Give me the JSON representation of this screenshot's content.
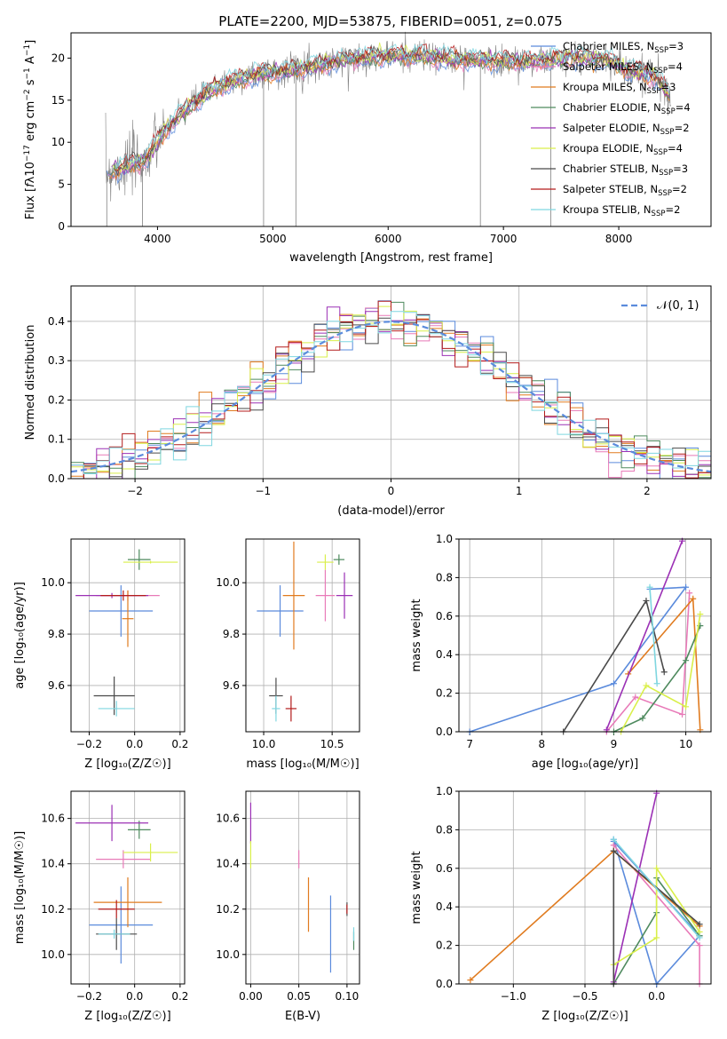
{
  "figure": {
    "title": "PLATE=2200, MJD=53875, FIBERID=0051, z=0.075"
  },
  "models": [
    {
      "name": "Chabrier MILES",
      "nssp": "3",
      "color": "#5b8bdc"
    },
    {
      "name": "Salpeter MILES",
      "nssp": "4",
      "color": "#e87ab8"
    },
    {
      "name": "Kroupa MILES",
      "nssp": "3",
      "color": "#e07b1f"
    },
    {
      "name": "Chabrier ELODIE",
      "nssp": "4",
      "color": "#4e8a5e"
    },
    {
      "name": "Salpeter ELODIE",
      "nssp": "2",
      "color": "#9b30b5"
    },
    {
      "name": "Kroupa ELODIE",
      "nssp": "4",
      "color": "#d9ef4a"
    },
    {
      "name": "Chabrier STELIB",
      "nssp": "3",
      "color": "#4a4a4a"
    },
    {
      "name": "Salpeter STELIB",
      "nssp": "2",
      "color": "#b31b1b"
    },
    {
      "name": "Kroupa STELIB",
      "nssp": "2",
      "color": "#7fd6e0"
    }
  ],
  "chart_data": [
    {
      "id": "spectrum",
      "type": "line",
      "xlabel": "wavelength [Angstrom, rest frame]",
      "ylabel": "Flux [f_λ 10^-17 erg cm^-2 s^-1 A^-1]",
      "xlim": [
        3250,
        8800
      ],
      "ylim": [
        0,
        23
      ],
      "xticks": [
        "4000",
        "5000",
        "6000",
        "7000",
        "8000"
      ],
      "yticks": [
        "0",
        "5",
        "10",
        "15",
        "20"
      ],
      "data_color": "#808080",
      "continuum_x": [
        3550,
        3700,
        3900,
        4000,
        4100,
        4300,
        4500,
        4700,
        4900,
        5100,
        5300,
        5500,
        5700,
        5900,
        6100,
        6300,
        6500,
        6700,
        6900,
        7100,
        7300,
        7500,
        7700,
        7900,
        8100,
        8300,
        8450
      ],
      "continuum_y": [
        6.5,
        7.0,
        8.0,
        10.0,
        12.0,
        14.5,
        16.5,
        17.5,
        18.2,
        18.5,
        19.0,
        19.5,
        20.0,
        20.2,
        20.3,
        20.2,
        20.0,
        19.8,
        19.7,
        19.6,
        19.7,
        19.9,
        20.1,
        19.8,
        18.5,
        18.0,
        15.5
      ],
      "spikes_x": [
        3560,
        3870,
        4920,
        5200,
        6800,
        7410
      ]
    },
    {
      "id": "residuals",
      "type": "histogram",
      "xlabel": "(data-model)/error",
      "ylabel": "Normed distribution",
      "xlim": [
        -2.5,
        2.5
      ],
      "ylim": [
        0,
        0.49
      ],
      "xticks": [
        "−2",
        "−1",
        "0",
        "1",
        "2"
      ],
      "yticks": [
        "0.0",
        "0.1",
        "0.2",
        "0.3",
        "0.4"
      ],
      "bin_width": 0.1,
      "reference": {
        "label": "𝒩(0, 1)",
        "mean": 0,
        "sigma": 1,
        "color": "#5b8bdc"
      }
    },
    {
      "id": "age-vs-metallicity",
      "type": "scatter",
      "xlabel": "Z [log₁₀(Z/Z☉)]",
      "ylabel": "age [log₁₀(age/yr)]",
      "xlim": [
        -0.28,
        0.22
      ],
      "ylim": [
        9.42,
        10.17
      ],
      "xticks": [
        {
          "v": -0.2,
          "t": "−0.2"
        },
        {
          "v": 0.0,
          "t": "0.0"
        },
        {
          "v": 0.2,
          "t": "0.2"
        }
      ],
      "yticks": [
        {
          "v": 9.6,
          "t": "9.6"
        },
        {
          "v": 9.8,
          "t": "9.8"
        },
        {
          "v": 10.0,
          "t": "10.0"
        }
      ],
      "points": [
        {
          "m": 0,
          "x": -0.06,
          "y": 9.89,
          "xe": 0.14,
          "ye": 0.1
        },
        {
          "m": 1,
          "x": -0.03,
          "y": 9.95,
          "xe": 0.14,
          "ye": 0.02
        },
        {
          "m": 2,
          "x": -0.03,
          "y": 9.86,
          "xe": 0.025,
          "ye": 0.11
        },
        {
          "m": 3,
          "x": 0.02,
          "y": 10.09,
          "xe": 0.05,
          "ye": 0.04
        },
        {
          "m": 4,
          "x": -0.1,
          "y": 9.95,
          "xe": 0.16,
          "ye": 0.01
        },
        {
          "m": 5,
          "x": 0.07,
          "y": 10.08,
          "xe": 0.12,
          "ye": 0.005
        },
        {
          "m": 6,
          "x": -0.09,
          "y": 9.56,
          "xe": 0.09,
          "ye": 0.075
        },
        {
          "m": 7,
          "x": -0.05,
          "y": 9.95,
          "xe": 0.1,
          "ye": 0.02
        },
        {
          "m": 8,
          "x": -0.08,
          "y": 9.51,
          "xe": 0.08,
          "ye": 0.03
        }
      ]
    },
    {
      "id": "age-vs-mass",
      "type": "scatter",
      "xlabel": "mass [log₁₀(M/M☉)]",
      "ylabel": "",
      "xlim": [
        9.87,
        10.7
      ],
      "ylim": [
        9.42,
        10.17
      ],
      "xticks": [
        {
          "v": 10.0,
          "t": "10.0"
        },
        {
          "v": 10.5,
          "t": "10.5"
        }
      ],
      "yticks": [
        {
          "v": 9.6,
          "t": "9.6"
        },
        {
          "v": 9.8,
          "t": "9.8"
        },
        {
          "v": 10.0,
          "t": "10.0"
        }
      ],
      "points": [
        {
          "m": 0,
          "x": 10.12,
          "y": 9.89,
          "xe": 0.17,
          "ye": 0.1
        },
        {
          "m": 1,
          "x": 10.45,
          "y": 9.95,
          "xe": 0.07,
          "ye": 0.1
        },
        {
          "m": 2,
          "x": 10.22,
          "y": 9.95,
          "xe": 0.08,
          "ye": 0.21
        },
        {
          "m": 3,
          "x": 10.55,
          "y": 10.09,
          "xe": 0.04,
          "ye": 0.02
        },
        {
          "m": 4,
          "x": 10.59,
          "y": 9.95,
          "xe": 0.06,
          "ye": 0.09
        },
        {
          "m": 5,
          "x": 10.45,
          "y": 10.08,
          "xe": 0.06,
          "ye": 0.03
        },
        {
          "m": 6,
          "x": 10.09,
          "y": 9.56,
          "xe": 0.05,
          "ye": 0.07
        },
        {
          "m": 7,
          "x": 10.2,
          "y": 9.51,
          "xe": 0.04,
          "ye": 0.05
        },
        {
          "m": 8,
          "x": 10.09,
          "y": 9.51,
          "xe": 0.03,
          "ye": 0.05
        }
      ]
    },
    {
      "id": "mass-weight-vs-age",
      "type": "line",
      "xlabel": "age [log₁₀(age/yr)]",
      "ylabel": "mass weight",
      "xlim": [
        6.85,
        10.35
      ],
      "ylim": [
        0,
        1
      ],
      "xticks": [
        {
          "v": 7,
          "t": "7"
        },
        {
          "v": 8,
          "t": "8"
        },
        {
          "v": 9,
          "t": "9"
        },
        {
          "v": 10,
          "t": "10"
        }
      ],
      "yticks": [
        {
          "v": 0,
          "t": "0.0"
        },
        {
          "v": 0.2,
          "t": "0.2"
        },
        {
          "v": 0.4,
          "t": "0.4"
        },
        {
          "v": 0.6,
          "t": "0.6"
        },
        {
          "v": 0.8,
          "t": "0.8"
        },
        {
          "v": 1.0,
          "t": "1.0"
        }
      ],
      "series": [
        {
          "m": 0,
          "x": [
            7.0,
            9.0,
            10.0,
            9.5
          ],
          "y": [
            0.0,
            0.25,
            0.75,
            0.74
          ]
        },
        {
          "m": 1,
          "x": [
            8.9,
            9.3,
            9.95,
            10.05
          ],
          "y": [
            0.0,
            0.18,
            0.09,
            0.72
          ]
        },
        {
          "m": 2,
          "x": [
            9.2,
            10.1,
            10.2
          ],
          "y": [
            0.3,
            0.69,
            0.01
          ]
        },
        {
          "m": 3,
          "x": [
            9.0,
            9.4,
            10.0,
            10.2
          ],
          "y": [
            0.0,
            0.07,
            0.37,
            0.55
          ]
        },
        {
          "m": 4,
          "x": [
            8.9,
            9.95
          ],
          "y": [
            0.01,
            0.99
          ]
        },
        {
          "m": 5,
          "x": [
            9.1,
            9.45,
            10.0,
            10.2
          ],
          "y": [
            0.0,
            0.24,
            0.13,
            0.61
          ]
        },
        {
          "m": 6,
          "x": [
            8.3,
            9.45,
            9.7
          ],
          "y": [
            0.0,
            0.68,
            0.31
          ]
        },
        {
          "m": 7,
          "x": [],
          "y": []
        },
        {
          "m": 8,
          "x": [
            9.5,
            9.6
          ],
          "y": [
            0.75,
            0.25
          ]
        }
      ]
    },
    {
      "id": "mass-vs-metallicity",
      "type": "scatter",
      "xlabel": "Z [log₁₀(Z/Z☉)]",
      "ylabel": "mass [log₁₀(M/M☉)]",
      "xlim": [
        -0.28,
        0.22
      ],
      "ylim": [
        9.87,
        10.72
      ],
      "xticks": [
        {
          "v": -0.2,
          "t": "−0.2"
        },
        {
          "v": 0.0,
          "t": "0.0"
        },
        {
          "v": 0.2,
          "t": "0.2"
        }
      ],
      "yticks": [
        {
          "v": 10.0,
          "t": "10.0"
        },
        {
          "v": 10.2,
          "t": "10.2"
        },
        {
          "v": 10.4,
          "t": "10.4"
        },
        {
          "v": 10.6,
          "t": "10.6"
        }
      ],
      "points": [
        {
          "m": 0,
          "x": -0.06,
          "y": 10.13,
          "xe": 0.14,
          "ye": 0.17
        },
        {
          "m": 1,
          "x": -0.05,
          "y": 10.42,
          "xe": 0.12,
          "ye": 0.04
        },
        {
          "m": 2,
          "x": -0.03,
          "y": 10.23,
          "xe": 0.15,
          "ye": 0.11
        },
        {
          "m": 3,
          "x": 0.02,
          "y": 10.55,
          "xe": 0.05,
          "ye": 0.04
        },
        {
          "m": 4,
          "x": -0.1,
          "y": 10.58,
          "xe": 0.16,
          "ye": 0.08
        },
        {
          "m": 5,
          "x": 0.07,
          "y": 10.45,
          "xe": 0.12,
          "ye": 0.04
        },
        {
          "m": 6,
          "x": -0.08,
          "y": 10.09,
          "xe": 0.09,
          "ye": 0.07
        },
        {
          "m": 7,
          "x": -0.08,
          "y": 10.2,
          "xe": 0.08,
          "ye": 0.04
        },
        {
          "m": 8,
          "x": -0.09,
          "y": 10.09,
          "xe": 0.07,
          "ye": 0.02
        }
      ]
    },
    {
      "id": "mass-vs-ebv",
      "type": "scatter",
      "xlabel": "E(B-V)",
      "ylabel": "",
      "xlim": [
        -0.005,
        0.113
      ],
      "ylim": [
        9.87,
        10.72
      ],
      "xticks": [
        {
          "v": 0.0,
          "t": "0.00"
        },
        {
          "v": 0.05,
          "t": "0.05"
        },
        {
          "v": 0.1,
          "t": "0.10"
        }
      ],
      "yticks": [
        {
          "v": 10.0,
          "t": "10.0"
        },
        {
          "v": 10.2,
          "t": "10.2"
        },
        {
          "v": 10.4,
          "t": "10.4"
        },
        {
          "v": 10.6,
          "t": "10.6"
        }
      ],
      "points": [
        {
          "m": 0,
          "x": 0.083,
          "y": 10.09,
          "xe": 0,
          "ye": 0.17
        },
        {
          "m": 1,
          "x": 0.05,
          "y": 10.42,
          "xe": 0,
          "ye": 0.04
        },
        {
          "m": 2,
          "x": 0.06,
          "y": 10.22,
          "xe": 0,
          "ye": 0.12
        },
        {
          "m": 3,
          "x": 0.107,
          "y": 10.06,
          "xe": 0,
          "ye": 0.04
        },
        {
          "m": 4,
          "x": 0.0,
          "y": 10.58,
          "xe": 0,
          "ye": 0.09
        },
        {
          "m": 5,
          "x": 0.0,
          "y": 10.44,
          "xe": 0,
          "ye": 0.06
        },
        {
          "m": 6,
          "x": 0.1,
          "y": 10.2,
          "xe": 0,
          "ye": 0.03
        },
        {
          "m": 7,
          "x": 0.1,
          "y": 10.2,
          "xe": 0,
          "ye": 0.02
        },
        {
          "m": 8,
          "x": 0.107,
          "y": 10.09,
          "xe": 0,
          "ye": 0.03
        }
      ]
    },
    {
      "id": "mass-weight-vs-metallicity",
      "type": "line",
      "xlabel": "Z [log₁₀(Z/Z☉)]",
      "ylabel": "mass weight",
      "xlim": [
        -1.38,
        0.38
      ],
      "ylim": [
        0,
        1
      ],
      "xticks": [
        {
          "v": -1.0,
          "t": "−1.0"
        },
        {
          "v": -0.5,
          "t": "−0.5"
        },
        {
          "v": 0.0,
          "t": "0.0"
        }
      ],
      "yticks": [
        {
          "v": 0,
          "t": "0.0"
        },
        {
          "v": 0.2,
          "t": "0.2"
        },
        {
          "v": 0.4,
          "t": "0.4"
        },
        {
          "v": 0.6,
          "t": "0.6"
        },
        {
          "v": 0.8,
          "t": "0.8"
        },
        {
          "v": 1.0,
          "t": "1.0"
        }
      ],
      "series": [
        {
          "m": 0,
          "x": [
            -0.3,
            0.0,
            0.3,
            -0.3
          ],
          "y": [
            0.75,
            0.0,
            0.25,
            0.74
          ]
        },
        {
          "m": 1,
          "x": [
            -0.3,
            0.3,
            0.3
          ],
          "y": [
            0.72,
            0.2,
            0.0
          ]
        },
        {
          "m": 2,
          "x": [
            -1.3,
            -0.3,
            0.3
          ],
          "y": [
            0.02,
            0.69,
            0.3
          ]
        },
        {
          "m": 3,
          "x": [
            -0.3,
            0.0,
            0.0,
            0.3
          ],
          "y": [
            0.0,
            0.37,
            0.55,
            0.25
          ]
        },
        {
          "m": 4,
          "x": [
            -0.3,
            0.0
          ],
          "y": [
            0.01,
            0.99
          ]
        },
        {
          "m": 5,
          "x": [
            -0.3,
            0.0,
            0.0,
            0.3
          ],
          "y": [
            0.1,
            0.24,
            0.6,
            0.27
          ]
        },
        {
          "m": 6,
          "x": [
            -0.3,
            -0.3,
            0.3
          ],
          "y": [
            0.0,
            0.69,
            0.31
          ]
        },
        {
          "m": 7,
          "x": [],
          "y": []
        },
        {
          "m": 8,
          "x": [
            -0.3,
            0.3
          ],
          "y": [
            0.75,
            0.24
          ]
        }
      ]
    }
  ]
}
